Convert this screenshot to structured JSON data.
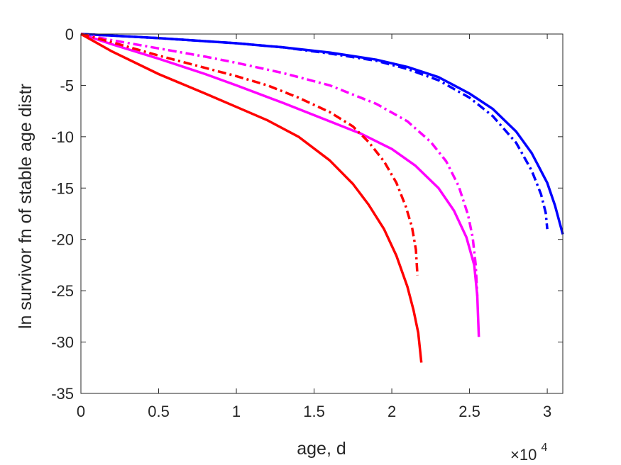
{
  "chart_data": {
    "type": "line",
    "xlabel": "age, d",
    "ylabel": "ln survivor fn of stable age distr",
    "x_multiplier_label": {
      "base": "×10",
      "exponent": "4"
    },
    "xlim": [
      0,
      31000
    ],
    "ylim": [
      -35,
      0
    ],
    "xticks": [
      0,
      5000,
      10000,
      15000,
      20000,
      25000,
      30000
    ],
    "xtick_labels": [
      "0",
      "0.5",
      "1",
      "1.5",
      "2",
      "2.5",
      "3"
    ],
    "yticks": [
      0,
      -5,
      -10,
      -15,
      -20,
      -25,
      -30,
      -35
    ],
    "ytick_labels": [
      "0",
      "-5",
      "-10",
      "-15",
      "-20",
      "-25",
      "-30",
      "-35"
    ],
    "grid": false,
    "legend": "none",
    "series": [
      {
        "color": "#0000ff",
        "style": "solid",
        "x": [
          0,
          2000,
          5000,
          8000,
          10000,
          13000,
          16000,
          19000,
          21000,
          23000,
          25000,
          26500,
          28000,
          29000,
          30000,
          30500,
          31000
        ],
        "y": [
          0,
          -0.15,
          -0.4,
          -0.7,
          -0.9,
          -1.3,
          -1.8,
          -2.5,
          -3.2,
          -4.2,
          -5.8,
          -7.3,
          -9.5,
          -11.6,
          -14.5,
          -16.7,
          -19.5
        ]
      },
      {
        "color": "#0000ff",
        "style": "dashdot",
        "x": [
          0,
          2000,
          5000,
          8000,
          10000,
          13000,
          16000,
          19000,
          21000,
          23000,
          25000,
          26500,
          28000,
          29000,
          29600,
          29900,
          30000
        ],
        "y": [
          0,
          -0.15,
          -0.4,
          -0.7,
          -0.9,
          -1.3,
          -1.9,
          -2.6,
          -3.4,
          -4.5,
          -6.2,
          -8.0,
          -10.6,
          -13.3,
          -15.6,
          -17.4,
          -19.0
        ]
      },
      {
        "color": "#ff00ff",
        "style": "dashdot",
        "x": [
          0,
          2000,
          5000,
          8000,
          10000,
          13000,
          16000,
          19000,
          21000,
          22500,
          23500,
          24300,
          24900,
          25200,
          25400,
          25500
        ],
        "y": [
          0,
          -0.6,
          -1.4,
          -2.2,
          -2.8,
          -3.8,
          -5.0,
          -6.8,
          -8.5,
          -10.5,
          -12.4,
          -14.8,
          -17.6,
          -19.8,
          -22.5,
          -25.5
        ]
      },
      {
        "color": "#ff00ff",
        "style": "solid",
        "x": [
          0,
          2000,
          5000,
          8000,
          10000,
          13000,
          16000,
          18000,
          20000,
          21500,
          23000,
          24000,
          24800,
          25300,
          25500,
          25600
        ],
        "y": [
          0,
          -1.0,
          -2.4,
          -3.9,
          -5.0,
          -6.7,
          -8.5,
          -9.7,
          -11.2,
          -12.8,
          -15.0,
          -17.2,
          -19.8,
          -22.5,
          -25.5,
          -29.5
        ]
      },
      {
        "color": "#ff0000",
        "style": "dashdot",
        "x": [
          0,
          2000,
          5000,
          8000,
          10000,
          12000,
          14000,
          16000,
          17500,
          18500,
          19500,
          20300,
          20900,
          21300,
          21550,
          21650
        ],
        "y": [
          0,
          -0.8,
          -2.1,
          -3.3,
          -4.1,
          -5.0,
          -6.2,
          -7.6,
          -9.0,
          -10.5,
          -12.4,
          -14.5,
          -16.8,
          -18.8,
          -21.0,
          -23.5
        ]
      },
      {
        "color": "#ff0000",
        "style": "solid",
        "x": [
          0,
          2000,
          5000,
          8000,
          10000,
          12000,
          14000,
          16000,
          17500,
          18500,
          19500,
          20300,
          21000,
          21400,
          21700,
          21900
        ],
        "y": [
          0,
          -1.7,
          -3.9,
          -5.8,
          -7.1,
          -8.4,
          -10.0,
          -12.3,
          -14.6,
          -16.6,
          -19.0,
          -21.6,
          -24.6,
          -26.9,
          -29.1,
          -32.0
        ]
      }
    ]
  }
}
